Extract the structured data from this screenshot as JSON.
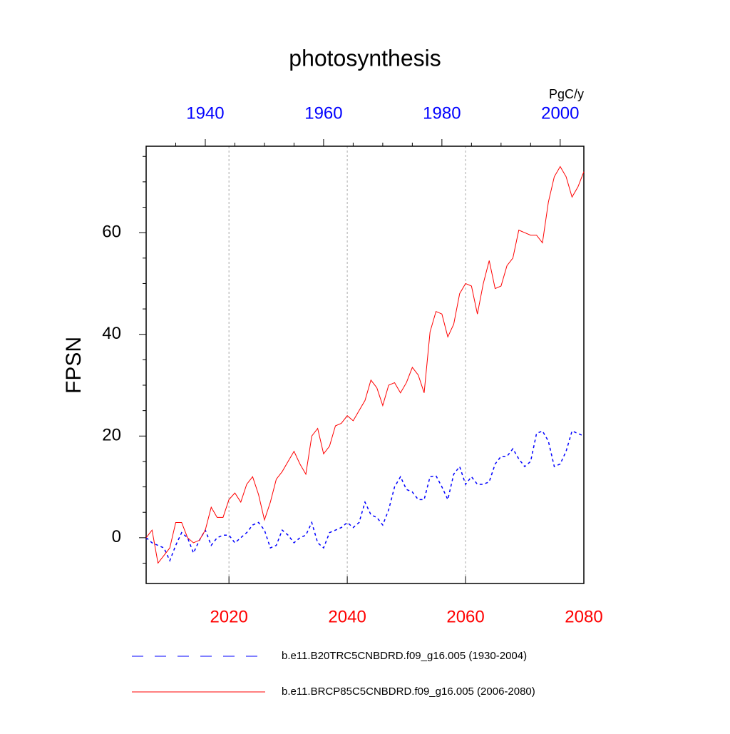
{
  "chart_data": {
    "type": "line",
    "title": "photosynthesis",
    "ylabel": "FPSN",
    "units": "PgC/y",
    "xlim": [
      2006,
      2080
    ],
    "xticks": [
      2020,
      2040,
      2060,
      2080
    ],
    "xtick_color": "#ff0000",
    "x2lim": [
      1930,
      2004
    ],
    "x2ticks": [
      1940,
      1960,
      1980,
      2000
    ],
    "x2tick_color": "#0000ff",
    "x2_minor_ticks": [
      1935,
      1945,
      1950,
      1955,
      1965,
      1970,
      1975,
      1985,
      1990,
      1995
    ],
    "ylim": [
      -9,
      77
    ],
    "yticks": [
      0,
      20,
      40,
      60
    ],
    "y_minor_ticks": [
      -5,
      5,
      10,
      15,
      25,
      30,
      35,
      45,
      50,
      55,
      65,
      70,
      75
    ],
    "grid": true,
    "series": [
      {
        "name": "b.e11.B20TRC5CNBDRD.f09_g16.005 (1930-2004)",
        "color": "#0000ff",
        "dash": true,
        "axis": "x2",
        "x": [
          1930,
          1931,
          1932,
          1933,
          1934,
          1935,
          1936,
          1937,
          1938,
          1939,
          1940,
          1941,
          1942,
          1943,
          1944,
          1945,
          1946,
          1947,
          1948,
          1949,
          1950,
          1951,
          1952,
          1953,
          1954,
          1955,
          1956,
          1957,
          1958,
          1959,
          1960,
          1961,
          1962,
          1963,
          1964,
          1965,
          1966,
          1967,
          1968,
          1969,
          1970,
          1971,
          1972,
          1973,
          1974,
          1975,
          1976,
          1977,
          1978,
          1979,
          1980,
          1981,
          1982,
          1983,
          1984,
          1985,
          1986,
          1987,
          1988,
          1989,
          1990,
          1991,
          1992,
          1993,
          1994,
          1995,
          1996,
          1997,
          1998,
          1999,
          2000,
          2001,
          2002,
          2003,
          2004
        ],
        "values": [
          0,
          -1,
          -1.5,
          -2,
          -4.5,
          -1.5,
          1,
          0,
          -3,
          -0.5,
          1.5,
          -1.5,
          0,
          0.5,
          0.5,
          -1,
          0,
          1,
          2.5,
          3,
          1.5,
          -2,
          -1.5,
          1.5,
          0.5,
          -1,
          0,
          0.5,
          3,
          -1,
          -2,
          1,
          1.5,
          2,
          3,
          2,
          3,
          7,
          4.5,
          4,
          2.5,
          5.5,
          10,
          12,
          9.5,
          9,
          7.5,
          7.5,
          12,
          12.2,
          10,
          7.5,
          12.5,
          14,
          10.5,
          12,
          10.5,
          10.5,
          11,
          14.5,
          16,
          16,
          17.5,
          15.5,
          14,
          15,
          20.5,
          21,
          19,
          14,
          14.5,
          17,
          21,
          20.5,
          20
        ]
      },
      {
        "name": "b.e11.BRCP85C5CNBDRD.f09_g16.005 (2006-2080)",
        "color": "#ff0000",
        "dash": false,
        "axis": "x",
        "x": [
          2006,
          2007,
          2008,
          2009,
          2010,
          2011,
          2012,
          2013,
          2014,
          2015,
          2016,
          2017,
          2018,
          2019,
          2020,
          2021,
          2022,
          2023,
          2024,
          2025,
          2026,
          2027,
          2028,
          2029,
          2030,
          2031,
          2032,
          2033,
          2034,
          2035,
          2036,
          2037,
          2038,
          2039,
          2040,
          2041,
          2042,
          2043,
          2044,
          2045,
          2046,
          2047,
          2048,
          2049,
          2050,
          2051,
          2052,
          2053,
          2054,
          2055,
          2056,
          2057,
          2058,
          2059,
          2060,
          2061,
          2062,
          2063,
          2064,
          2065,
          2066,
          2067,
          2068,
          2069,
          2070,
          2071,
          2072,
          2073,
          2074,
          2075,
          2076,
          2077,
          2078,
          2079,
          2080
        ],
        "values": [
          0,
          1.5,
          -5,
          -3.5,
          -2,
          3,
          3,
          0,
          -1,
          -0.5,
          1.5,
          6,
          4,
          4,
          7.5,
          8.8,
          7,
          10.5,
          12,
          8.5,
          3.5,
          7,
          11.5,
          13,
          15,
          17,
          14.5,
          12.5,
          20,
          21.5,
          16.5,
          18,
          22,
          22.5,
          24,
          23,
          25,
          27,
          31,
          29.5,
          26,
          30,
          30.5,
          28.5,
          30.5,
          33.5,
          32,
          28.5,
          40.5,
          44.5,
          44,
          39.5,
          42,
          48,
          50,
          49.5,
          44,
          50,
          54.5,
          49,
          49.5,
          53.5,
          55,
          60.5,
          60,
          59.5,
          59.5,
          58,
          66,
          71,
          73,
          71,
          67,
          69,
          72
        ]
      }
    ]
  }
}
